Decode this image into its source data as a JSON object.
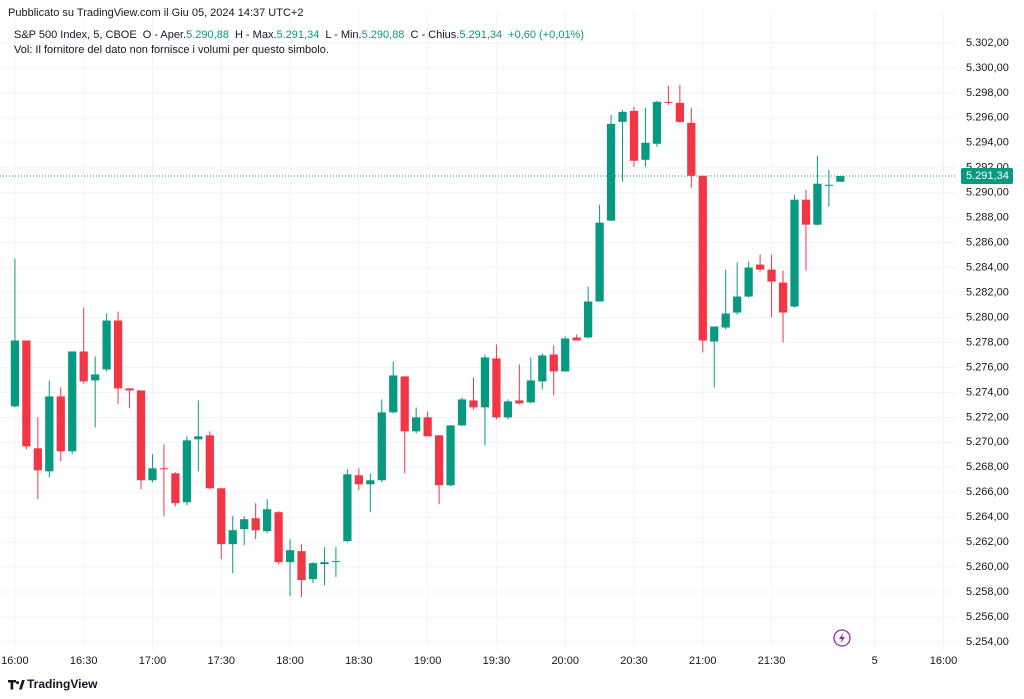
{
  "published": "Pubblicato su TradingView.com il Giu 05, 2024 14:37 UTC+2",
  "header": {
    "symbol": "S&P 500 Index, 5, CBOE",
    "ohlc": [
      {
        "label": "O - Aper.",
        "value": "5.290,88"
      },
      {
        "label": "H - Max.",
        "value": "5.291,34"
      },
      {
        "label": "L - Min.",
        "value": "5.290,88"
      },
      {
        "label": "C - Chius.",
        "value": "5.291,34"
      }
    ],
    "change": "+0,60 (+0,01%)",
    "volume_note": "Vol: Il fornitore del dato non fornisce i volumi per questo simbolo."
  },
  "footer": "TradingView",
  "chart_data": {
    "type": "candlestick",
    "up_color": "#089981",
    "down_color": "#f23645",
    "grid": true,
    "xlim": [
      -1.3,
      82
    ],
    "xticks": [
      {
        "value": 0,
        "label": "16:00"
      },
      {
        "value": 6,
        "label": "16:30"
      },
      {
        "value": 12,
        "label": "17:00"
      },
      {
        "value": 18,
        "label": "17:30"
      },
      {
        "value": 24,
        "label": "18:00"
      },
      {
        "value": 30,
        "label": "18:30"
      },
      {
        "value": 36,
        "label": "19:00"
      },
      {
        "value": 42,
        "label": "19:30"
      },
      {
        "value": 48,
        "label": "20:00"
      },
      {
        "value": 54,
        "label": "20:30"
      },
      {
        "value": 60,
        "label": "21:00"
      },
      {
        "value": 66,
        "label": "21:30"
      },
      {
        "value": 75,
        "label": "5"
      },
      {
        "value": 81,
        "label": "16:00"
      }
    ],
    "ylim": [
      5253.36,
      5304.4
    ],
    "yticks": [
      {
        "value": 5254,
        "label": "5.254,00"
      },
      {
        "value": 5256,
        "label": "5.256,00"
      },
      {
        "value": 5258,
        "label": "5.258,00"
      },
      {
        "value": 5260,
        "label": "5.260,00"
      },
      {
        "value": 5262,
        "label": "5.262,00"
      },
      {
        "value": 5264,
        "label": "5.264,00"
      },
      {
        "value": 5266,
        "label": "5.266,00"
      },
      {
        "value": 5268,
        "label": "5.268,00"
      },
      {
        "value": 5270,
        "label": "5.270,00"
      },
      {
        "value": 5272,
        "label": "5.272,00"
      },
      {
        "value": 5274,
        "label": "5.274,00"
      },
      {
        "value": 5276,
        "label": "5.276,00"
      },
      {
        "value": 5278,
        "label": "5.278,00"
      },
      {
        "value": 5280,
        "label": "5.280,00"
      },
      {
        "value": 5282,
        "label": "5.282,00"
      },
      {
        "value": 5284,
        "label": "5.284,00"
      },
      {
        "value": 5286,
        "label": "5.286,00"
      },
      {
        "value": 5288,
        "label": "5.288,00"
      },
      {
        "value": 5290,
        "label": "5.290,00"
      },
      {
        "value": 5292,
        "label": "5.292,00"
      },
      {
        "value": 5294,
        "label": "5.294,00"
      },
      {
        "value": 5296,
        "label": "5.296,00"
      },
      {
        "value": 5298,
        "label": "5.298,00"
      },
      {
        "value": 5300,
        "label": "5.300,00"
      },
      {
        "value": 5302,
        "label": "5.302,00"
      }
    ],
    "last_price": {
      "value": 5291.34,
      "label": "5.291,34"
    },
    "candles": [
      {
        "open": 5272.88,
        "high": 5284.72,
        "low": 5272.8,
        "close": 5278.16
      },
      {
        "open": 5278.16,
        "high": 5278.16,
        "low": 5269.44,
        "close": 5269.68
      },
      {
        "open": 5269.52,
        "high": 5272.0,
        "low": 5265.44,
        "close": 5267.76
      },
      {
        "open": 5267.68,
        "high": 5274.96,
        "low": 5267.2,
        "close": 5273.68
      },
      {
        "open": 5273.68,
        "high": 5274.4,
        "low": 5268.48,
        "close": 5269.28
      },
      {
        "open": 5269.28,
        "high": 5277.28,
        "low": 5269.04,
        "close": 5277.28
      },
      {
        "open": 5277.28,
        "high": 5280.8,
        "low": 5274.72,
        "close": 5274.88
      },
      {
        "open": 5274.96,
        "high": 5276.88,
        "low": 5271.2,
        "close": 5275.44
      },
      {
        "open": 5275.84,
        "high": 5280.32,
        "low": 5275.68,
        "close": 5279.76
      },
      {
        "open": 5279.76,
        "high": 5280.48,
        "low": 5273.04,
        "close": 5274.32
      },
      {
        "open": 5274.32,
        "high": 5274.32,
        "low": 5272.72,
        "close": 5274.16
      },
      {
        "open": 5274.16,
        "high": 5274.16,
        "low": 5266.24,
        "close": 5266.96
      },
      {
        "open": 5266.96,
        "high": 5269.04,
        "low": 5266.8,
        "close": 5267.92
      },
      {
        "open": 5267.92,
        "high": 5269.84,
        "low": 5264.08,
        "close": 5267.84
      },
      {
        "open": 5267.52,
        "high": 5267.6,
        "low": 5264.88,
        "close": 5265.12
      },
      {
        "open": 5265.2,
        "high": 5270.48,
        "low": 5264.96,
        "close": 5270.16
      },
      {
        "open": 5270.24,
        "high": 5273.36,
        "low": 5267.68,
        "close": 5270.48
      },
      {
        "open": 5270.56,
        "high": 5270.88,
        "low": 5266.24,
        "close": 5266.32
      },
      {
        "open": 5266.32,
        "high": 5266.32,
        "low": 5260.64,
        "close": 5261.84
      },
      {
        "open": 5261.84,
        "high": 5264.08,
        "low": 5259.52,
        "close": 5262.96
      },
      {
        "open": 5263.04,
        "high": 5264.08,
        "low": 5261.76,
        "close": 5263.84
      },
      {
        "open": 5263.92,
        "high": 5265.12,
        "low": 5262.24,
        "close": 5262.96
      },
      {
        "open": 5262.88,
        "high": 5265.44,
        "low": 5262.72,
        "close": 5264.64
      },
      {
        "open": 5264.4,
        "high": 5264.48,
        "low": 5260.24,
        "close": 5260.4
      },
      {
        "open": 5260.4,
        "high": 5262.24,
        "low": 5257.68,
        "close": 5261.36
      },
      {
        "open": 5261.28,
        "high": 5261.84,
        "low": 5257.6,
        "close": 5258.96
      },
      {
        "open": 5259.04,
        "high": 5260.4,
        "low": 5258.72,
        "close": 5260.32
      },
      {
        "open": 5260.24,
        "high": 5261.6,
        "low": 5258.56,
        "close": 5260.4
      },
      {
        "open": 5260.4,
        "high": 5261.6,
        "low": 5259.2,
        "close": 5260.48
      },
      {
        "open": 5262.08,
        "high": 5267.84,
        "low": 5262.0,
        "close": 5267.44
      },
      {
        "open": 5267.36,
        "high": 5267.92,
        "low": 5266.16,
        "close": 5266.64
      },
      {
        "open": 5266.64,
        "high": 5267.52,
        "low": 5264.4,
        "close": 5266.96
      },
      {
        "open": 5266.96,
        "high": 5273.44,
        "low": 5266.8,
        "close": 5272.4
      },
      {
        "open": 5272.4,
        "high": 5276.48,
        "low": 5272.32,
        "close": 5275.36
      },
      {
        "open": 5275.28,
        "high": 5275.28,
        "low": 5267.52,
        "close": 5270.88
      },
      {
        "open": 5270.88,
        "high": 5272.8,
        "low": 5270.72,
        "close": 5272.0
      },
      {
        "open": 5272.0,
        "high": 5272.48,
        "low": 5270.48,
        "close": 5270.48
      },
      {
        "open": 5270.56,
        "high": 5270.56,
        "low": 5265.04,
        "close": 5266.56
      },
      {
        "open": 5266.56,
        "high": 5271.36,
        "low": 5266.48,
        "close": 5271.36
      },
      {
        "open": 5271.36,
        "high": 5273.6,
        "low": 5271.28,
        "close": 5273.44
      },
      {
        "open": 5273.36,
        "high": 5275.2,
        "low": 5272.64,
        "close": 5272.8
      },
      {
        "open": 5272.8,
        "high": 5277.04,
        "low": 5269.76,
        "close": 5276.8
      },
      {
        "open": 5276.72,
        "high": 5277.84,
        "low": 5271.84,
        "close": 5272.0
      },
      {
        "open": 5272.0,
        "high": 5273.44,
        "low": 5271.84,
        "close": 5273.28
      },
      {
        "open": 5273.36,
        "high": 5276.24,
        "low": 5273.04,
        "close": 5273.12
      },
      {
        "open": 5273.2,
        "high": 5276.8,
        "low": 5273.12,
        "close": 5274.96
      },
      {
        "open": 5274.88,
        "high": 5277.12,
        "low": 5274.24,
        "close": 5276.96
      },
      {
        "open": 5277.04,
        "high": 5277.76,
        "low": 5273.76,
        "close": 5275.68
      },
      {
        "open": 5275.68,
        "high": 5278.48,
        "low": 5275.68,
        "close": 5278.32
      },
      {
        "open": 5278.4,
        "high": 5278.64,
        "low": 5278.16,
        "close": 5278.16
      },
      {
        "open": 5278.4,
        "high": 5282.48,
        "low": 5278.32,
        "close": 5281.28
      },
      {
        "open": 5281.28,
        "high": 5289.04,
        "low": 5281.28,
        "close": 5287.6
      },
      {
        "open": 5287.76,
        "high": 5296.24,
        "low": 5287.76,
        "close": 5295.52
      },
      {
        "open": 5295.68,
        "high": 5296.64,
        "low": 5290.88,
        "close": 5296.48
      },
      {
        "open": 5296.56,
        "high": 5296.88,
        "low": 5292.08,
        "close": 5292.56
      },
      {
        "open": 5292.64,
        "high": 5296.8,
        "low": 5292.08,
        "close": 5294.0
      },
      {
        "open": 5293.92,
        "high": 5297.36,
        "low": 5293.68,
        "close": 5297.28
      },
      {
        "open": 5297.28,
        "high": 5298.56,
        "low": 5297.04,
        "close": 5297.2
      },
      {
        "open": 5297.2,
        "high": 5298.64,
        "low": 5295.6,
        "close": 5295.68
      },
      {
        "open": 5295.6,
        "high": 5296.8,
        "low": 5290.4,
        "close": 5291.36
      },
      {
        "open": 5291.36,
        "high": 5291.36,
        "low": 5277.2,
        "close": 5278.16
      },
      {
        "open": 5278.08,
        "high": 5279.28,
        "low": 5274.4,
        "close": 5279.28
      },
      {
        "open": 5279.2,
        "high": 5283.84,
        "low": 5279.04,
        "close": 5280.32
      },
      {
        "open": 5280.4,
        "high": 5284.4,
        "low": 5280.24,
        "close": 5281.68
      },
      {
        "open": 5281.68,
        "high": 5284.48,
        "low": 5281.6,
        "close": 5284.0
      },
      {
        "open": 5284.24,
        "high": 5285.04,
        "low": 5283.68,
        "close": 5283.84
      },
      {
        "open": 5283.84,
        "high": 5285.04,
        "low": 5280.0,
        "close": 5282.88
      },
      {
        "open": 5282.8,
        "high": 5283.76,
        "low": 5278.0,
        "close": 5280.4
      },
      {
        "open": 5280.88,
        "high": 5289.84,
        "low": 5280.8,
        "close": 5289.44
      },
      {
        "open": 5289.44,
        "high": 5290.24,
        "low": 5283.76,
        "close": 5287.44
      },
      {
        "open": 5287.44,
        "high": 5292.96,
        "low": 5287.36,
        "close": 5290.72
      },
      {
        "open": 5290.56,
        "high": 5291.84,
        "low": 5288.88,
        "close": 5290.64
      },
      {
        "open": 5290.88,
        "high": 5291.34,
        "low": 5290.88,
        "close": 5291.34
      }
    ]
  }
}
